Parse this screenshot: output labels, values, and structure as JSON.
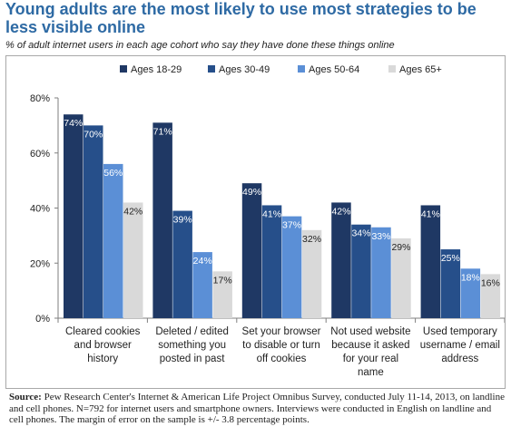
{
  "title": "Young adults are the most likely to use most strategies to be less visible online",
  "subtitle": "% of adult internet users in each age cohort who say they have done these things online",
  "source": {
    "label": "Source:",
    "text": "Pew Research Center's Internet & American Life Project Omnibus Survey, conducted July 11-14, 2013, on landline and cell phones. N=792 for internet users and smartphone owners. Interviews were conducted in English on landline and cell phones. The margin of error on the sample is +/- 3.8 percentage points."
  },
  "colors": {
    "series": [
      "#1f3864",
      "#264f8a",
      "#5b8fd6",
      "#d9d9d9"
    ],
    "axis": "#7f7f7f"
  },
  "chart_data": {
    "type": "bar",
    "title": "Young adults are the most likely to use most strategies to be less visible online",
    "subtitle": "% of adult internet users in each age cohort who say they have done these things online",
    "ylim": [
      0,
      80
    ],
    "y_ticks": [
      "0%",
      "20%",
      "40%",
      "60%",
      "80%"
    ],
    "grid": false,
    "legend_position": "top",
    "categories": [
      [
        "Cleared cookies",
        "and browser",
        "history"
      ],
      [
        "Deleted / edited",
        "something you",
        "posted in past"
      ],
      [
        "Set your browser",
        "to disable or turn",
        "off cookies"
      ],
      [
        "Not used website",
        "because it asked",
        "for your real",
        "name"
      ],
      [
        "Used temporary",
        "username / email",
        "address"
      ]
    ],
    "series": [
      {
        "name": "Ages 18-29",
        "values": [
          74,
          71,
          49,
          42,
          41
        ],
        "labels": [
          "74%",
          "71%",
          "49%",
          "42%",
          "41%"
        ]
      },
      {
        "name": "Ages 30-49",
        "values": [
          70,
          39,
          41,
          34,
          25
        ],
        "labels": [
          "70%",
          "39%",
          "41%",
          "34%",
          "25%"
        ]
      },
      {
        "name": "Ages 50-64",
        "values": [
          56,
          24,
          37,
          33,
          18
        ],
        "labels": [
          "56%",
          "24%",
          "37%",
          "33%",
          "18%"
        ]
      },
      {
        "name": "Ages 65+",
        "values": [
          42,
          17,
          32,
          29,
          16
        ],
        "labels": [
          "42%",
          "17%",
          "32%",
          "29%",
          "16%"
        ]
      }
    ]
  }
}
